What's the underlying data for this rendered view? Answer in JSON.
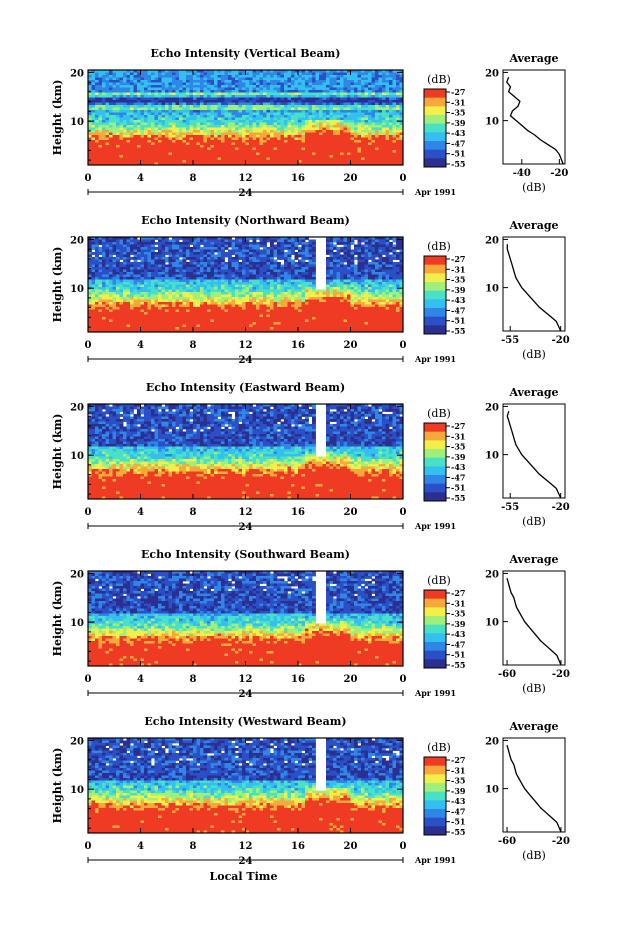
{
  "chart_data": [
    {
      "type": "heatmap",
      "title": "Echo Intensity (Vertical Beam)",
      "ylabel": "Height (km)",
      "x_ticks": [
        "0",
        "4",
        "8",
        "12",
        "16",
        "20",
        "0"
      ],
      "y_ticks": [
        "10",
        "20"
      ],
      "xlim": [
        0,
        24
      ],
      "ylim": [
        1,
        20.5
      ],
      "date_marker": "24",
      "date_label": "Apr 1991",
      "colorbar": {
        "unit": "(dB)",
        "ticks": [
          "-27",
          "-31",
          "-35",
          "-39",
          "-43",
          "-47",
          "-51",
          "-55"
        ]
      },
      "average_profile": {
        "title": "Average",
        "xlabel": "(dB)",
        "x_ticks": [
          "-40",
          "-20"
        ],
        "y_ticks": [
          "10",
          "20"
        ],
        "xlim": [
          -50,
          -17
        ],
        "x": [
          -18,
          -20,
          -22,
          -26,
          -30,
          -33,
          -37,
          -40,
          -43,
          -46,
          -45,
          -42,
          -41,
          -44,
          -47,
          -46,
          -48,
          -47
        ],
        "y": [
          1,
          3,
          4,
          5,
          6,
          7,
          8,
          9,
          10,
          11,
          12,
          13,
          14,
          15,
          16,
          17,
          18,
          19
        ]
      }
    },
    {
      "type": "heatmap",
      "title": "Echo Intensity (Northward Beam)",
      "ylabel": "Height (km)",
      "x_ticks": [
        "0",
        "4",
        "8",
        "12",
        "16",
        "20",
        "0"
      ],
      "y_ticks": [
        "10",
        "20"
      ],
      "xlim": [
        0,
        24
      ],
      "ylim": [
        1,
        20.5
      ],
      "date_marker": "24",
      "date_label": "Apr 1991",
      "colorbar": {
        "unit": "(dB)",
        "ticks": [
          "-27",
          "-31",
          "-35",
          "-39",
          "-43",
          "-47",
          "-51",
          "-55"
        ]
      },
      "average_profile": {
        "title": "Average",
        "xlabel": "(dB)",
        "x_ticks": [
          "-55",
          "-20"
        ],
        "y_ticks": [
          "10",
          "20"
        ],
        "xlim": [
          -60,
          -17
        ],
        "x": [
          -20,
          -23,
          -27,
          -31,
          -35,
          -38,
          -41,
          -44,
          -47,
          -49,
          -51,
          -52,
          -53,
          -54,
          -55,
          -56,
          -57,
          -57
        ],
        "y": [
          1,
          3,
          4,
          5,
          6,
          7,
          8,
          9,
          10,
          11,
          12,
          13,
          14,
          15,
          16,
          17,
          18,
          19
        ]
      }
    },
    {
      "type": "heatmap",
      "title": "Echo Intensity (Eastward Beam)",
      "ylabel": "Height (km)",
      "x_ticks": [
        "0",
        "4",
        "8",
        "12",
        "16",
        "20",
        "0"
      ],
      "y_ticks": [
        "10",
        "20"
      ],
      "xlim": [
        0,
        24
      ],
      "ylim": [
        1,
        20.5
      ],
      "date_marker": "24",
      "date_label": "Apr 1991",
      "colorbar": {
        "unit": "(dB)",
        "ticks": [
          "-27",
          "-31",
          "-35",
          "-39",
          "-43",
          "-47",
          "-51",
          "-55"
        ]
      },
      "average_profile": {
        "title": "Average",
        "xlabel": "(dB)",
        "x_ticks": [
          "-55",
          "-20"
        ],
        "y_ticks": [
          "10",
          "20"
        ],
        "xlim": [
          -60,
          -17
        ],
        "x": [
          -20,
          -23,
          -27,
          -31,
          -35,
          -38,
          -41,
          -44,
          -47,
          -49,
          -51,
          -52,
          -53,
          -54,
          -55,
          -56,
          -57,
          -56
        ],
        "y": [
          1,
          3,
          4,
          5,
          6,
          7,
          8,
          9,
          10,
          11,
          12,
          13,
          14,
          15,
          16,
          17,
          18,
          19
        ]
      }
    },
    {
      "type": "heatmap",
      "title": "Echo Intensity (Southward Beam)",
      "ylabel": "Height (km)",
      "x_ticks": [
        "0",
        "4",
        "8",
        "12",
        "16",
        "20",
        "0"
      ],
      "y_ticks": [
        "10",
        "20"
      ],
      "xlim": [
        0,
        24
      ],
      "ylim": [
        1,
        20.5
      ],
      "date_marker": "24",
      "date_label": "Apr 1991",
      "colorbar": {
        "unit": "(dB)",
        "ticks": [
          "-27",
          "-31",
          "-35",
          "-39",
          "-43",
          "-47",
          "-51",
          "-55"
        ]
      },
      "average_profile": {
        "title": "Average",
        "xlabel": "(dB)",
        "x_ticks": [
          "-60",
          "-20"
        ],
        "y_ticks": [
          "10",
          "20"
        ],
        "xlim": [
          -63,
          -17
        ],
        "x": [
          -20,
          -23,
          -27,
          -31,
          -35,
          -38,
          -41,
          -44,
          -47,
          -49,
          -51,
          -53,
          -54,
          -55,
          -57,
          -58,
          -59,
          -60
        ],
        "y": [
          1,
          3,
          4,
          5,
          6,
          7,
          8,
          9,
          10,
          11,
          12,
          13,
          14,
          15,
          16,
          17,
          18,
          19
        ]
      }
    },
    {
      "type": "heatmap",
      "title": "Echo Intensity (Westward Beam)",
      "ylabel": "Height (km)",
      "xlabel": "Local Time",
      "x_ticks": [
        "0",
        "4",
        "8",
        "12",
        "16",
        "20",
        "0"
      ],
      "y_ticks": [
        "10",
        "20"
      ],
      "xlim": [
        0,
        24
      ],
      "ylim": [
        1,
        20.5
      ],
      "date_marker": "24",
      "date_label": "Apr 1991",
      "colorbar": {
        "unit": "(dB)",
        "ticks": [
          "-27",
          "-31",
          "-35",
          "-39",
          "-43",
          "-47",
          "-51",
          "-55"
        ]
      },
      "average_profile": {
        "title": "Average",
        "xlabel": "(dB)",
        "x_ticks": [
          "-60",
          "-20"
        ],
        "y_ticks": [
          "10",
          "20"
        ],
        "xlim": [
          -63,
          -17
        ],
        "x": [
          -20,
          -23,
          -27,
          -31,
          -35,
          -38,
          -41,
          -44,
          -47,
          -49,
          -51,
          -53,
          -54,
          -55,
          -57,
          -58,
          -59,
          -60
        ],
        "y": [
          1,
          3,
          4,
          5,
          6,
          7,
          8,
          9,
          10,
          11,
          12,
          13,
          14,
          15,
          16,
          17,
          18,
          19
        ]
      }
    }
  ],
  "palette": [
    "#2b2f8f",
    "#2a4fc6",
    "#2f86e6",
    "#33c0f0",
    "#49e0c8",
    "#9ef07a",
    "#f2ee4a",
    "#f6a83a",
    "#ef3b24"
  ]
}
